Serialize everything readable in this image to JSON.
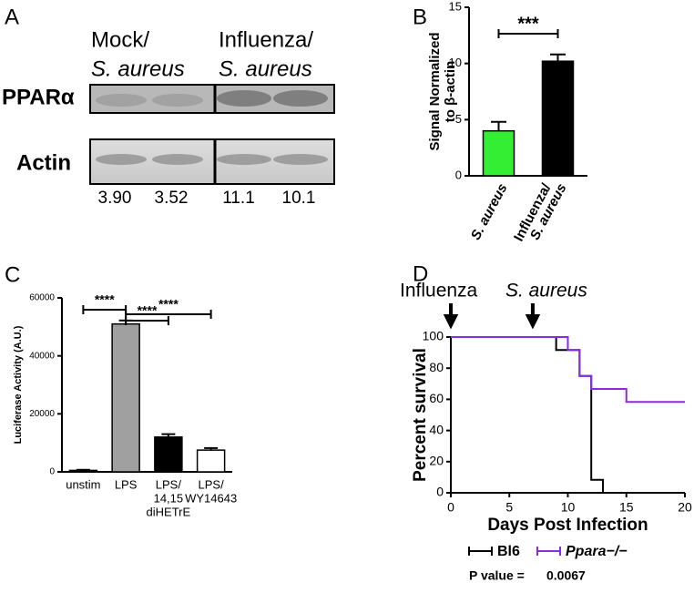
{
  "blot": {
    "panel": "A",
    "groups": [
      [
        "Mock/",
        "S. aureus"
      ],
      [
        "Influenza/",
        "S. aureus"
      ]
    ],
    "rows": [
      "PPARα",
      "Actin"
    ],
    "ratios": [
      "3.90",
      "3.52",
      "11.1",
      "10.1"
    ]
  },
  "chart_data": [
    {
      "type": "bar",
      "panel": "B",
      "categories": [
        [
          "S. aureus"
        ],
        [
          "Influenza/",
          "S. aureus"
        ]
      ],
      "values": [
        4.0,
        10.2
      ],
      "errors": [
        0.8,
        0.6
      ],
      "colors": [
        "#33ee33",
        "#000000"
      ],
      "ylabel": [
        "Signal Normalized",
        "to β-actin"
      ],
      "ylim": [
        0,
        15
      ],
      "yticks": [
        0,
        5,
        10,
        15
      ],
      "comparisons": [
        {
          "label": "***",
          "between": [
            0,
            1
          ]
        }
      ]
    },
    {
      "type": "bar",
      "panel": "C",
      "categories": [
        [
          "unstim"
        ],
        [
          "LPS"
        ],
        [
          "LPS/",
          "14,15",
          "diHETrE"
        ],
        [
          "LPS/",
          "WY14643"
        ]
      ],
      "values": [
        500,
        51000,
        12000,
        7500
      ],
      "errors": [
        200,
        1200,
        1000,
        700
      ],
      "colors": [
        "#000000",
        "#a0a0a0",
        "#000000",
        "#ffffff"
      ],
      "ylabel": [
        "Luciferase Activity (A.U.)"
      ],
      "ylim": [
        0,
        60000
      ],
      "yticks": [
        0,
        20000,
        40000,
        60000
      ],
      "comparisons": [
        {
          "label": "****",
          "between": [
            0,
            1
          ]
        },
        {
          "label": "****",
          "between": [
            1,
            2
          ]
        },
        {
          "label": "****",
          "between": [
            1,
            3
          ]
        }
      ]
    },
    {
      "type": "line",
      "panel": "D",
      "step": true,
      "x": [
        0,
        9,
        10,
        11,
        12,
        13,
        15,
        20
      ],
      "series": [
        {
          "name": "Bl6",
          "color": "#000000",
          "values": [
            100,
            91.7,
            91.7,
            75,
            8.3,
            0,
            null,
            null
          ]
        },
        {
          "name": "Ppara−/−",
          "color": "#8a2be2",
          "values": [
            100,
            100,
            91.7,
            75,
            66.7,
            66.7,
            58.3,
            58.3
          ]
        }
      ],
      "xlabel": "Days Post Infection",
      "ylabel": "Percent survival",
      "xlim": [
        0,
        20
      ],
      "xticks": [
        0,
        5,
        10,
        15,
        20
      ],
      "ylim": [
        0,
        100
      ],
      "yticks": [
        0,
        20,
        40,
        60,
        80,
        100
      ],
      "annotations": [
        {
          "text": "Influenza",
          "x": 0
        },
        {
          "text": "S. aureus",
          "x": 7
        }
      ],
      "p_value_label": "P value =",
      "p_value": 0.0067
    }
  ]
}
